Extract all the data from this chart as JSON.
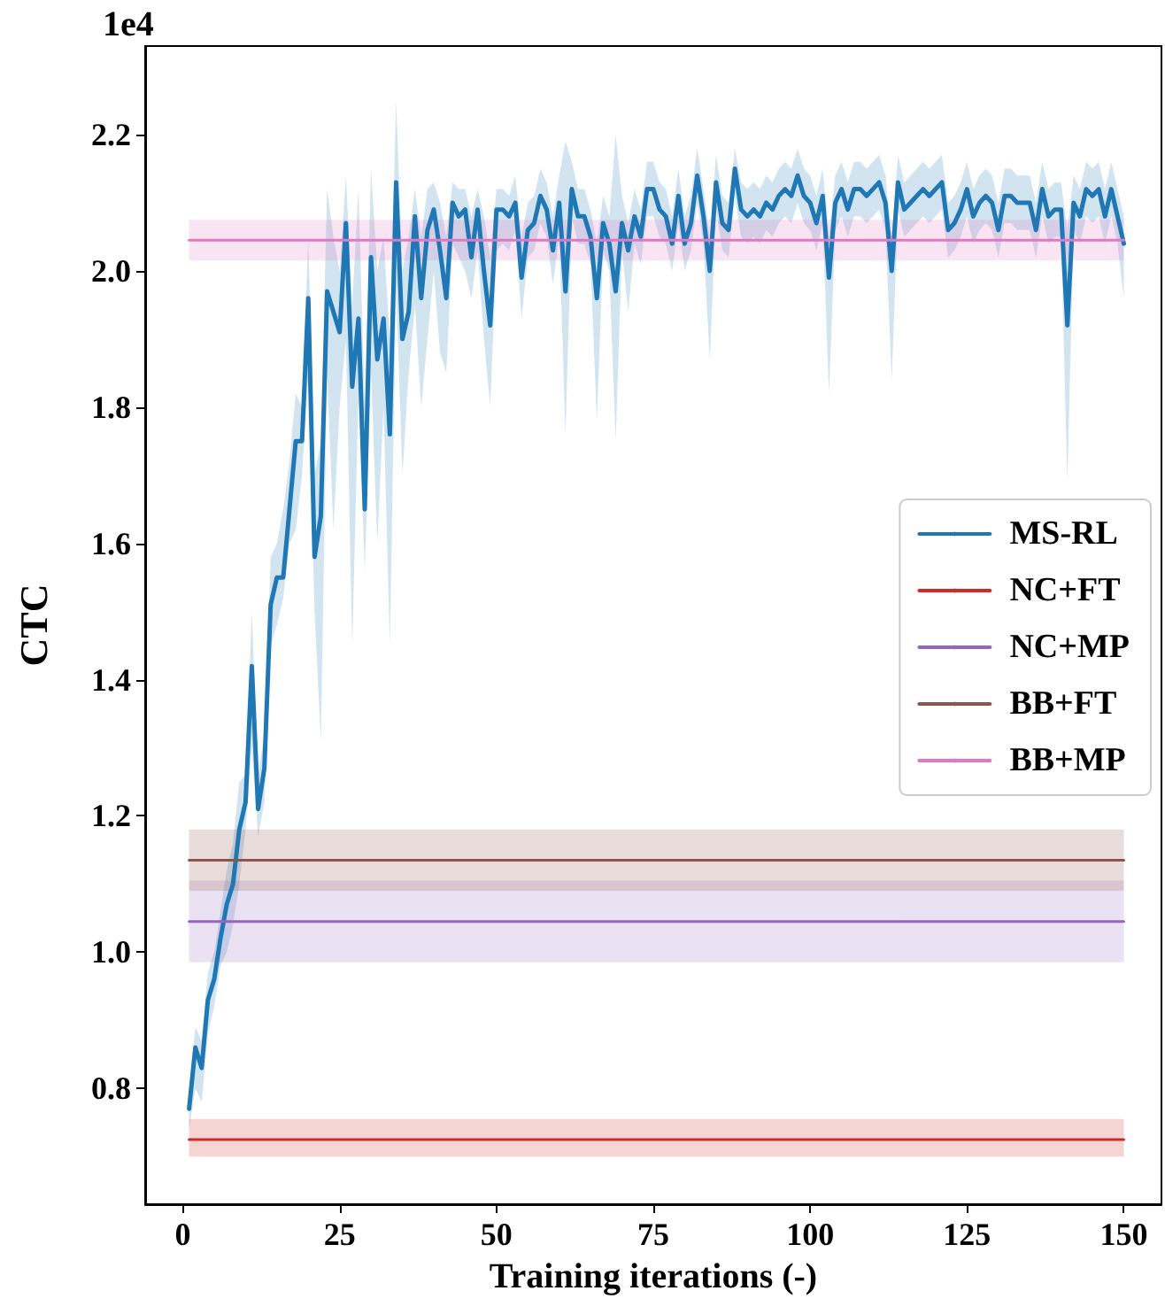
{
  "chart_data": {
    "type": "line",
    "xlabel": "Training iterations (-)",
    "ylabel": "CTC",
    "annotations": [
      "1e4"
    ],
    "xlim": [
      -6,
      156
    ],
    "xticks": [
      0,
      25,
      50,
      75,
      100,
      125,
      150
    ],
    "ylim": [
      0.63,
      2.33
    ],
    "yticks": [
      0.8,
      {
        "value": 1.0,
        "label": "1.0"
      },
      1.2,
      1.4,
      1.6,
      1.8,
      {
        "value": 2.0,
        "label": "2.0"
      },
      2.2
    ],
    "grid": false,
    "legend": "right",
    "marker": "none",
    "line_style": "solid",
    "series": [
      {
        "name": "MS-RL",
        "color": "#1f77b4",
        "x": [
          1,
          2,
          3,
          4,
          5,
          6,
          7,
          8,
          9,
          10,
          11,
          12,
          13,
          14,
          15,
          16,
          17,
          18,
          19,
          20,
          21,
          22,
          23,
          24,
          25,
          26,
          27,
          28,
          29,
          30,
          31,
          32,
          33,
          34,
          35,
          36,
          37,
          38,
          39,
          40,
          41,
          42,
          43,
          44,
          45,
          46,
          47,
          48,
          49,
          50,
          51,
          52,
          53,
          54,
          55,
          56,
          57,
          58,
          59,
          60,
          61,
          62,
          63,
          64,
          65,
          66,
          67,
          68,
          69,
          70,
          71,
          72,
          73,
          74,
          75,
          76,
          77,
          78,
          79,
          80,
          81,
          82,
          83,
          84,
          85,
          86,
          87,
          88,
          89,
          90,
          91,
          92,
          93,
          94,
          95,
          96,
          97,
          98,
          99,
          100,
          101,
          102,
          103,
          104,
          105,
          106,
          107,
          108,
          109,
          110,
          111,
          112,
          113,
          114,
          115,
          116,
          117,
          118,
          119,
          120,
          121,
          122,
          123,
          124,
          125,
          126,
          127,
          128,
          129,
          130,
          131,
          132,
          133,
          134,
          135,
          136,
          137,
          138,
          139,
          140,
          141,
          142,
          143,
          144,
          145,
          146,
          147,
          148,
          149,
          150
        ],
        "values": [
          0.77,
          0.86,
          0.83,
          0.93,
          0.96,
          1.02,
          1.07,
          1.1,
          1.18,
          1.22,
          1.42,
          1.21,
          1.27,
          1.51,
          1.55,
          1.55,
          1.65,
          1.75,
          1.75,
          1.96,
          1.58,
          1.64,
          1.97,
          1.94,
          1.91,
          2.07,
          1.83,
          1.93,
          1.65,
          2.02,
          1.87,
          1.93,
          1.76,
          2.13,
          1.9,
          1.94,
          2.08,
          1.96,
          2.06,
          2.09,
          2.03,
          1.96,
          2.1,
          2.08,
          2.09,
          2.02,
          2.09,
          2.0,
          1.92,
          2.09,
          2.09,
          2.08,
          2.1,
          1.99,
          2.06,
          2.07,
          2.11,
          2.09,
          2.03,
          2.1,
          1.97,
          2.12,
          2.08,
          2.08,
          2.05,
          1.96,
          2.07,
          2.04,
          1.97,
          2.07,
          2.03,
          2.08,
          2.05,
          2.12,
          2.12,
          2.09,
          2.08,
          2.04,
          2.11,
          2.04,
          2.07,
          2.14,
          2.08,
          2.0,
          2.13,
          2.07,
          2.06,
          2.15,
          2.09,
          2.08,
          2.09,
          2.08,
          2.1,
          2.09,
          2.11,
          2.12,
          2.11,
          2.14,
          2.11,
          2.1,
          2.07,
          2.11,
          1.99,
          2.1,
          2.12,
          2.09,
          2.12,
          2.12,
          2.11,
          2.12,
          2.13,
          2.1,
          2.0,
          2.13,
          2.09,
          2.1,
          2.11,
          2.12,
          2.11,
          2.12,
          2.13,
          2.06,
          2.07,
          2.09,
          2.12,
          2.08,
          2.1,
          2.11,
          2.1,
          2.06,
          2.11,
          2.11,
          2.1,
          2.1,
          2.1,
          2.06,
          2.12,
          2.08,
          2.09,
          2.09,
          1.92,
          2.1,
          2.08,
          2.12,
          2.11,
          2.12,
          2.08,
          2.12,
          2.08,
          2.04
        ],
        "lower": [
          0.74,
          0.8,
          0.78,
          0.88,
          0.92,
          0.98,
          1.0,
          1.04,
          1.1,
          1.18,
          1.3,
          1.17,
          1.22,
          1.45,
          1.48,
          1.52,
          1.6,
          1.62,
          1.7,
          1.85,
          1.5,
          1.31,
          1.85,
          1.62,
          1.8,
          1.9,
          1.45,
          1.82,
          1.56,
          1.85,
          1.6,
          1.8,
          1.45,
          1.98,
          1.7,
          1.85,
          1.95,
          1.8,
          1.9,
          2.0,
          1.88,
          1.85,
          2.04,
          2.02,
          2.0,
          1.96,
          2.03,
          1.9,
          1.8,
          2.03,
          2.04,
          2.03,
          2.06,
          1.93,
          2.02,
          2.03,
          2.07,
          2.05,
          1.98,
          2.05,
          1.76,
          2.08,
          2.04,
          2.04,
          2.01,
          1.78,
          2.03,
          2.0,
          1.75,
          2.03,
          1.94,
          2.04,
          2.01,
          2.08,
          2.08,
          2.05,
          2.04,
          2.0,
          2.07,
          2.0,
          2.03,
          2.1,
          2.04,
          1.87,
          2.09,
          2.03,
          2.02,
          2.11,
          2.05,
          2.04,
          2.05,
          2.04,
          2.06,
          2.05,
          2.07,
          2.08,
          2.07,
          2.1,
          2.07,
          2.06,
          2.03,
          2.07,
          1.82,
          2.06,
          2.08,
          2.05,
          2.08,
          2.08,
          2.07,
          2.08,
          2.09,
          2.06,
          1.84,
          2.09,
          2.05,
          2.06,
          2.07,
          2.08,
          2.07,
          2.08,
          2.09,
          2.02,
          2.03,
          2.05,
          2.08,
          2.04,
          2.06,
          2.07,
          2.06,
          2.02,
          2.07,
          2.07,
          2.06,
          2.06,
          2.06,
          2.02,
          2.08,
          2.04,
          2.05,
          2.05,
          1.69,
          2.06,
          2.04,
          2.08,
          2.07,
          2.08,
          2.04,
          2.08,
          2.04,
          1.96
        ],
        "upper": [
          0.8,
          0.89,
          0.87,
          0.97,
          1.0,
          1.06,
          1.12,
          1.16,
          1.25,
          1.26,
          1.5,
          1.26,
          1.32,
          1.58,
          1.6,
          1.65,
          1.72,
          1.82,
          1.8,
          2.05,
          1.7,
          1.75,
          2.12,
          2.05,
          2.0,
          2.14,
          1.95,
          2.12,
          1.8,
          2.15,
          2.0,
          2.05,
          1.9,
          2.25,
          2.0,
          2.05,
          2.12,
          2.05,
          2.12,
          2.13,
          2.1,
          2.05,
          2.13,
          2.12,
          2.12,
          2.08,
          2.12,
          2.08,
          2.02,
          2.12,
          2.12,
          2.11,
          2.14,
          2.05,
          2.1,
          2.11,
          2.15,
          2.13,
          2.08,
          2.14,
          2.19,
          2.16,
          2.12,
          2.12,
          2.09,
          2.04,
          2.11,
          2.08,
          2.2,
          2.11,
          2.07,
          2.12,
          2.09,
          2.16,
          2.16,
          2.13,
          2.12,
          2.08,
          2.15,
          2.08,
          2.11,
          2.18,
          2.12,
          2.05,
          2.17,
          2.11,
          2.1,
          2.18,
          2.13,
          2.12,
          2.13,
          2.12,
          2.14,
          2.13,
          2.15,
          2.16,
          2.15,
          2.18,
          2.15,
          2.14,
          2.11,
          2.15,
          2.05,
          2.14,
          2.16,
          2.13,
          2.16,
          2.16,
          2.15,
          2.16,
          2.17,
          2.14,
          2.05,
          2.17,
          2.13,
          2.14,
          2.15,
          2.16,
          2.15,
          2.16,
          2.17,
          2.1,
          2.11,
          2.13,
          2.16,
          2.12,
          2.14,
          2.15,
          2.14,
          2.1,
          2.15,
          2.15,
          2.14,
          2.14,
          2.14,
          2.1,
          2.16,
          2.12,
          2.13,
          2.13,
          2.06,
          2.14,
          2.12,
          2.16,
          2.15,
          2.16,
          2.12,
          2.16,
          2.12,
          2.08
        ]
      },
      {
        "name": "NC+FT",
        "color": "#d62728",
        "x": [
          1,
          150
        ],
        "values": [
          0.725,
          0.725
        ],
        "lower": [
          0.7,
          0.7
        ],
        "upper": [
          0.755,
          0.755
        ]
      },
      {
        "name": "NC+MP",
        "color": "#9467bd",
        "x": [
          1,
          150
        ],
        "values": [
          1.045,
          1.045
        ],
        "lower": [
          0.985,
          0.985
        ],
        "upper": [
          1.105,
          1.105
        ]
      },
      {
        "name": "BB+FT",
        "color": "#8c564b",
        "x": [
          1,
          150
        ],
        "values": [
          1.135,
          1.135
        ],
        "lower": [
          1.09,
          1.09
        ],
        "upper": [
          1.18,
          1.18
        ]
      },
      {
        "name": "BB+MP",
        "color": "#e377c2",
        "x": [
          1,
          150
        ],
        "values": [
          2.045,
          2.045
        ],
        "lower": [
          2.015,
          2.015
        ],
        "upper": [
          2.075,
          2.075
        ]
      }
    ]
  }
}
